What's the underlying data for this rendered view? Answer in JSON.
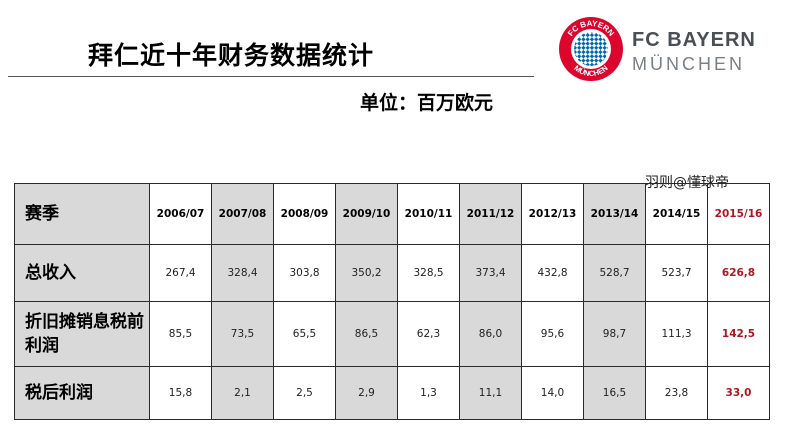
{
  "title": "拜仁近十年财务数据统计",
  "unit": "单位：百万欧元",
  "logo": {
    "line1": "FC BAYERN",
    "line2": "MÜNCHEN",
    "badge_text": "FC BAYERN MÜNCHEN",
    "colors": {
      "red": "#dc052d",
      "blue": "#0066b2",
      "gray": "#4a4f56"
    }
  },
  "watermark": "羽则@懂球帝",
  "table": {
    "header_label": "赛季",
    "seasons": [
      "2006/07",
      "2007/08",
      "2008/09",
      "2009/10",
      "2010/11",
      "2011/12",
      "2012/13",
      "2013/14",
      "2014/15",
      "2015/16"
    ],
    "rows": [
      {
        "label": "总收入",
        "values": [
          "267,4",
          "328,4",
          "303,8",
          "350,2",
          "328,5",
          "373,4",
          "432,8",
          "528,7",
          "523,7",
          "626,8"
        ]
      },
      {
        "label": "折旧摊销息税前利润",
        "values": [
          "85,5",
          "73,5",
          "65,5",
          "86,5",
          "62,3",
          "86,0",
          "95,6",
          "98,7",
          "111,3",
          "142,5"
        ]
      },
      {
        "label": "税后利润",
        "values": [
          "15,8",
          "2,1",
          "2,5",
          "2,9",
          "1,3",
          "11,1",
          "14,0",
          "16,5",
          "23,8",
          "33,0"
        ]
      }
    ],
    "highlight_color": "#b3141d"
  }
}
